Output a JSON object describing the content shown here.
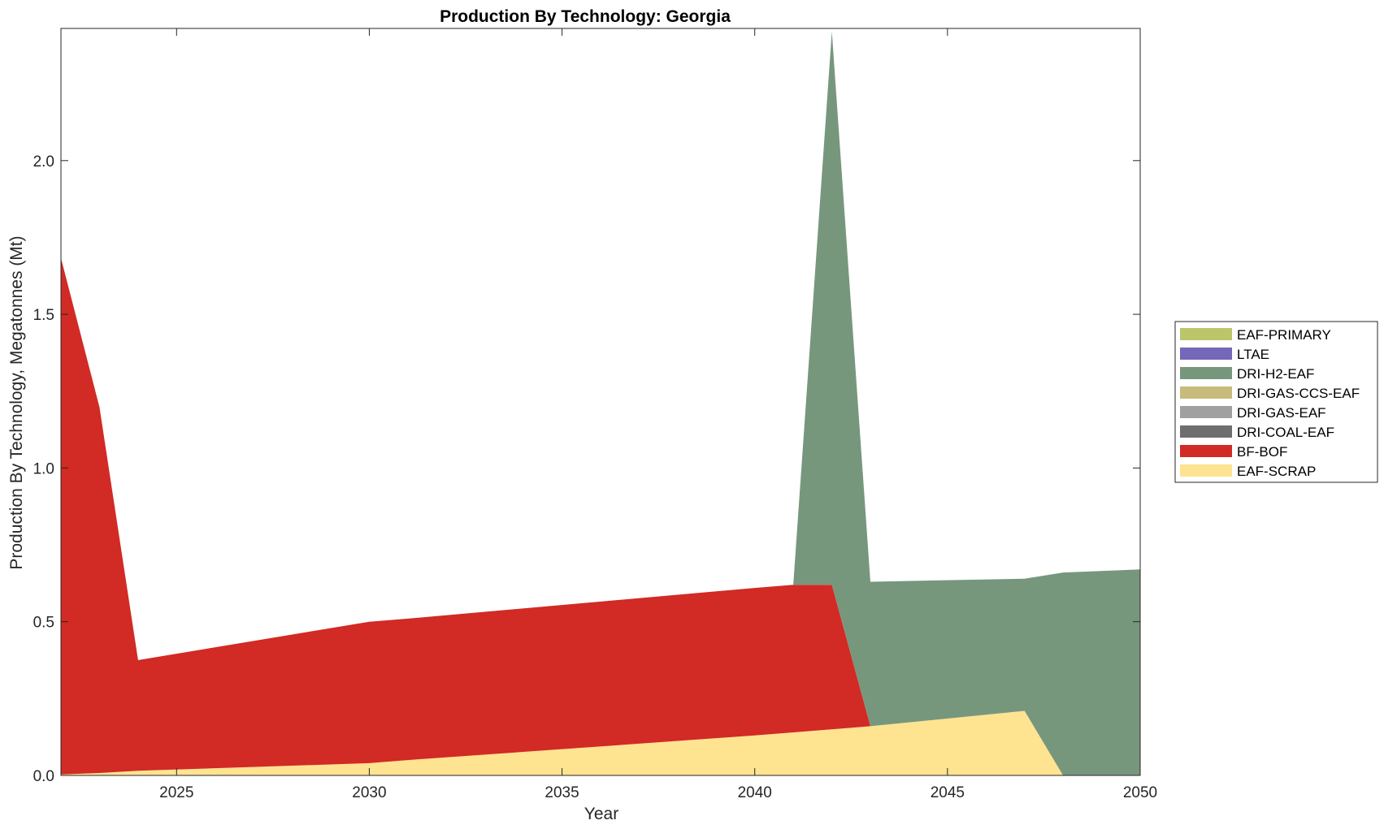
{
  "chart_data": {
    "type": "area",
    "title": "Production By Technology: Georgia",
    "xlabel": "Year",
    "ylabel": "Production By Technology, Megatonnes (Mt)",
    "xlim": [
      2022,
      2050
    ],
    "ylim": [
      0,
      2.43
    ],
    "xticks": [
      2025,
      2030,
      2035,
      2040,
      2045,
      2050
    ],
    "xtick_labels": [
      "2025",
      "2030",
      "2035",
      "2040",
      "2045",
      "2050"
    ],
    "yticks": [
      0,
      0.5,
      1.0,
      1.5,
      2.0
    ],
    "ytick_labels": [
      "0.0",
      "0.5",
      "1.0",
      "1.5",
      "2.0"
    ],
    "grid": false,
    "legend_position": "right",
    "x": [
      2022,
      2023,
      2024,
      2030,
      2031,
      2040,
      2041,
      2042,
      2043,
      2047,
      2048,
      2050
    ],
    "series": [
      {
        "name": "EAF-PRIMARY",
        "color": "#BCC56A",
        "values": [
          0,
          0,
          0,
          0,
          0,
          0,
          0,
          0,
          0,
          0,
          0,
          0
        ]
      },
      {
        "name": "LTAE",
        "color": "#7468B8",
        "values": [
          0,
          0,
          0,
          0,
          0,
          0,
          0,
          0,
          0,
          0,
          0,
          0
        ]
      },
      {
        "name": "DRI-H2-EAF",
        "color": "#77977D",
        "values": [
          0,
          0,
          0,
          0,
          0,
          0,
          0,
          1.8,
          0.47,
          0.43,
          0.66,
          0.67
        ]
      },
      {
        "name": "DRI-GAS-CCS-EAF",
        "color": "#C6BB7A",
        "values": [
          0,
          0,
          0,
          0,
          0,
          0,
          0,
          0,
          0,
          0,
          0,
          0
        ]
      },
      {
        "name": "DRI-GAS-EAF",
        "color": "#A0A0A0",
        "values": [
          0,
          0,
          0,
          0,
          0,
          0,
          0,
          0,
          0,
          0,
          0,
          0
        ]
      },
      {
        "name": "DRI-COAL-EAF",
        "color": "#6E6E6E",
        "values": [
          0,
          0,
          0,
          0,
          0,
          0,
          0,
          0,
          0,
          0,
          0,
          0
        ]
      },
      {
        "name": "BF-BOF",
        "color": "#D22A24",
        "values": [
          1.68,
          1.19,
          0.36,
          0.46,
          0.46,
          0.48,
          0.48,
          0.47,
          0,
          0,
          0,
          0
        ]
      },
      {
        "name": "EAF-SCRAP",
        "color": "#FEE391",
        "values": [
          0.003,
          0.008,
          0.015,
          0.04,
          0.05,
          0.13,
          0.14,
          0.15,
          0.16,
          0.21,
          0,
          0
        ]
      }
    ]
  }
}
